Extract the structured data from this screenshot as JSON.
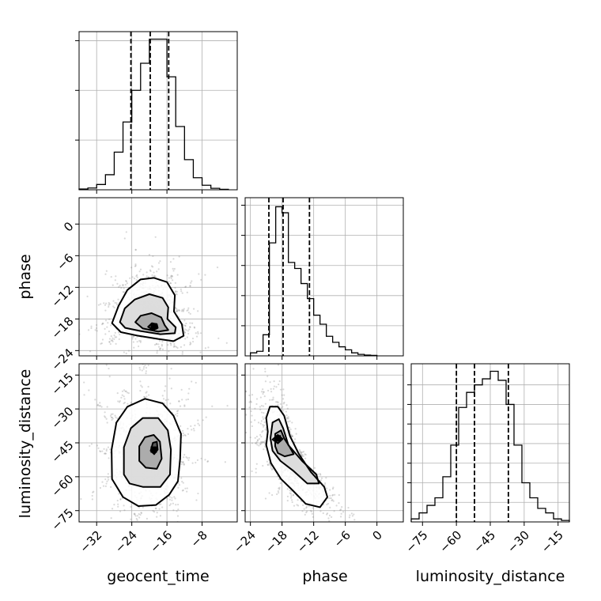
{
  "chart_data": [
    {
      "type": "histogram",
      "panel": "geocent_time-marginal",
      "parameter": "geocent_time",
      "xlim": [
        -36,
        0
      ],
      "xticks": [
        -32,
        -24,
        -16,
        -8
      ],
      "bin_edges": [
        -36,
        -34,
        -32,
        -30,
        -28,
        -26,
        -24,
        -22,
        -20,
        -18,
        -16,
        -14,
        -12,
        -10,
        -8,
        -6,
        -4,
        -2
      ],
      "counts": [
        0.5,
        1.2,
        3.5,
        10,
        25,
        45,
        66,
        84,
        100,
        100,
        75,
        42,
        20,
        8,
        3,
        1,
        0.3
      ],
      "ylim": [
        0,
        105
      ],
      "yticks": [
        33,
        66,
        99
      ],
      "quantiles": [
        -24.2,
        -19.8,
        -15.6
      ]
    },
    {
      "type": "histogram",
      "panel": "phase-marginal",
      "parameter": "phase",
      "xlim": [
        -25,
        5
      ],
      "xticks": [
        -24,
        -18,
        -12,
        -6,
        0
      ],
      "bin_edges": [
        -24,
        -22.8,
        -21.6,
        -20.4,
        -19.2,
        -18,
        -16.8,
        -15.6,
        -14.4,
        -13.2,
        -12,
        -10.8,
        -9.6,
        -8.4,
        -7.2,
        -6,
        -4.8,
        -3.6,
        -2.4,
        -1.2,
        0
      ],
      "counts": [
        2,
        3,
        14,
        75,
        99,
        95,
        62,
        58,
        48,
        38,
        27,
        21,
        13,
        9,
        6,
        4,
        2,
        1,
        0.5,
        0.3
      ],
      "ylim": [
        0,
        105
      ],
      "yticks": [
        20,
        40,
        60,
        80,
        100
      ],
      "quantiles": [
        -20.5,
        -17.8,
        -12.8
      ]
    },
    {
      "type": "histogram",
      "panel": "luminosity_distance-marginal",
      "parameter": "luminosity_distance",
      "xlim": [
        -80,
        -10
      ],
      "xticks": [
        -75,
        -60,
        -45,
        -30,
        -15
      ],
      "bin_edges": [
        -80,
        -76.5,
        -73,
        -69.5,
        -66,
        -62.5,
        -59,
        -55.5,
        -52,
        -48.5,
        -45,
        -41.5,
        -38,
        -34.5,
        -31,
        -27.5,
        -24,
        -20.5,
        -17,
        -13.5,
        -10
      ],
      "counts": [
        2,
        6,
        11,
        16,
        30,
        51,
        76,
        86,
        91,
        95,
        100,
        94,
        78,
        51,
        26,
        16,
        9,
        6,
        2,
        1
      ],
      "ylim": [
        0,
        105
      ],
      "yticks": [
        13,
        26,
        39,
        52,
        65,
        78,
        91
      ],
      "quantiles": [
        -60,
        -52,
        -37
      ]
    },
    {
      "type": "scatter",
      "panel": "phase-vs-geocent_time",
      "x_param": "geocent_time",
      "y_param": "phase",
      "xlim": [
        -36,
        0
      ],
      "ylim": [
        -25,
        5
      ],
      "xticks": [
        -32,
        -24,
        -16,
        -8
      ],
      "yticks": [
        0,
        -6,
        -12,
        -18,
        -24
      ],
      "density_peak": [
        -19,
        -19.4
      ],
      "contours": [
        [
          [
            -28.5,
            -18.8
          ],
          [
            -27,
            -15.5
          ],
          [
            -25,
            -12.5
          ],
          [
            -22,
            -10.5
          ],
          [
            -19,
            -10.2
          ],
          [
            -16,
            -11
          ],
          [
            -14.2,
            -13.5
          ],
          [
            -14.4,
            -16.6
          ],
          [
            -12.6,
            -19
          ],
          [
            -12.2,
            -21.2
          ],
          [
            -14.5,
            -22.2
          ],
          [
            -18,
            -21.8
          ],
          [
            -22.5,
            -21.2
          ],
          [
            -26.5,
            -20.5
          ]
        ],
        [
          [
            -26.7,
            -18.6
          ],
          [
            -25.6,
            -16
          ],
          [
            -23.3,
            -14.3
          ],
          [
            -20,
            -13.3
          ],
          [
            -17,
            -14
          ],
          [
            -15.7,
            -15.8
          ],
          [
            -15.9,
            -18
          ],
          [
            -14,
            -19.6
          ],
          [
            -14.2,
            -20.7
          ],
          [
            -17.5,
            -20.9
          ],
          [
            -22,
            -20.3
          ],
          [
            -25.5,
            -19.7
          ]
        ],
        [
          [
            -23.2,
            -18.6
          ],
          [
            -22,
            -17.4
          ],
          [
            -19.5,
            -16.9
          ],
          [
            -17.3,
            -17.7
          ],
          [
            -16.5,
            -19.2
          ],
          [
            -15.7,
            -20.1
          ],
          [
            -18,
            -20.4
          ],
          [
            -21.5,
            -19.8
          ]
        ],
        [
          [
            -20.3,
            -19.5
          ],
          [
            -19.4,
            -18.8
          ],
          [
            -18.3,
            -19
          ],
          [
            -18.1,
            -19.7
          ],
          [
            -19.2,
            -20.1
          ]
        ]
      ]
    },
    {
      "type": "scatter",
      "panel": "luminosity_distance-vs-geocent_time",
      "x_param": "geocent_time",
      "y_param": "luminosity_distance",
      "xlim": [
        -36,
        0
      ],
      "ylim": [
        -80,
        -10
      ],
      "xticks": [
        -32,
        -24,
        -16,
        -8
      ],
      "yticks": [
        -15,
        -30,
        -45,
        -60,
        -75
      ],
      "density_peak": [
        -19,
        -48
      ],
      "contours": [
        [
          [
            -28.5,
            -61
          ],
          [
            -28.6,
            -48
          ],
          [
            -27.5,
            -36
          ],
          [
            -25,
            -29
          ],
          [
            -21,
            -25.5
          ],
          [
            -17,
            -27.5
          ],
          [
            -14.5,
            -33
          ],
          [
            -12.8,
            -41
          ],
          [
            -13,
            -52
          ],
          [
            -13.5,
            -62
          ],
          [
            -15.5,
            -68
          ],
          [
            -18.5,
            -72.5
          ],
          [
            -22.5,
            -73
          ],
          [
            -26,
            -69
          ]
        ],
        [
          [
            -25.8,
            -59
          ],
          [
            -25.8,
            -47
          ],
          [
            -24.2,
            -38.5
          ],
          [
            -21.5,
            -34
          ],
          [
            -18,
            -34
          ],
          [
            -15.8,
            -39.5
          ],
          [
            -15.1,
            -48
          ],
          [
            -15.3,
            -59
          ],
          [
            -17.5,
            -64.5
          ],
          [
            -21.5,
            -64.5
          ],
          [
            -24.5,
            -63
          ]
        ],
        [
          [
            -22.3,
            -53
          ],
          [
            -22.3,
            -46.5
          ],
          [
            -21,
            -42.5
          ],
          [
            -19,
            -41.5
          ],
          [
            -17.6,
            -44.5
          ],
          [
            -17.2,
            -52
          ],
          [
            -18.3,
            -56.5
          ],
          [
            -20.8,
            -56
          ]
        ],
        [
          [
            -19.7,
            -48.5
          ],
          [
            -19.2,
            -45
          ],
          [
            -18.3,
            -44.5
          ],
          [
            -18.1,
            -48
          ],
          [
            -18.9,
            -50
          ]
        ]
      ]
    },
    {
      "type": "scatter",
      "panel": "luminosity_distance-vs-phase",
      "x_param": "phase",
      "y_param": "luminosity_distance",
      "xlim": [
        -25,
        5
      ],
      "ylim": [
        -80,
        -10
      ],
      "xticks": [
        -24,
        -18,
        -12,
        -6,
        0
      ],
      "yticks": [
        -15,
        -30,
        -45,
        -60,
        -75
      ],
      "density_peak": [
        -18.8,
        -43
      ],
      "contours": [
        [
          [
            -20.7,
            -40
          ],
          [
            -21,
            -34
          ],
          [
            -20.3,
            -29
          ],
          [
            -18.8,
            -29
          ],
          [
            -17.6,
            -33
          ],
          [
            -16.5,
            -42
          ],
          [
            -14.8,
            -50
          ],
          [
            -12.5,
            -58
          ],
          [
            -10,
            -64.5
          ],
          [
            -9.4,
            -69
          ],
          [
            -10.8,
            -73.5
          ],
          [
            -13.5,
            -72
          ],
          [
            -16,
            -66
          ],
          [
            -18.2,
            -61
          ],
          [
            -20.1,
            -54
          ],
          [
            -21,
            -46
          ]
        ],
        [
          [
            -20.2,
            -43
          ],
          [
            -19.8,
            -36
          ],
          [
            -18.6,
            -34.5
          ],
          [
            -17.8,
            -38.5
          ],
          [
            -16.8,
            -46
          ],
          [
            -14.2,
            -53
          ],
          [
            -11.5,
            -59
          ],
          [
            -11,
            -63
          ],
          [
            -13.2,
            -63
          ],
          [
            -15.8,
            -57.5
          ],
          [
            -18.3,
            -53
          ],
          [
            -19.8,
            -48.5
          ]
        ],
        [
          [
            -19.3,
            -46.5
          ],
          [
            -19.3,
            -41
          ],
          [
            -18.2,
            -39.5
          ],
          [
            -17.6,
            -43
          ],
          [
            -16.5,
            -47
          ],
          [
            -15.8,
            -50
          ],
          [
            -17.5,
            -51
          ],
          [
            -18.8,
            -49.5
          ]
        ],
        [
          [
            -19.8,
            -43.5
          ],
          [
            -18.8,
            -41.5
          ],
          [
            -17.9,
            -43.3
          ],
          [
            -18.8,
            -45.2
          ]
        ]
      ]
    }
  ],
  "labels": {
    "ylabel_phase": "phase",
    "ylabel_luminosity_distance": "luminosity_distance",
    "xlabel_geocent_time": "geocent_time",
    "xlabel_phase": "phase",
    "xlabel_luminosity_distance": "luminosity_distance"
  },
  "tick_labels": {
    "geocent_time": [
      "−32",
      "−24",
      "−16",
      "−8"
    ],
    "phase": [
      "−24",
      "−18",
      "−12",
      "−6",
      "0"
    ],
    "phase_y": [
      "0",
      "−6",
      "−12",
      "−18",
      "−24"
    ],
    "luminosity_distance": [
      "−75",
      "−60",
      "−45",
      "−30",
      "−15"
    ],
    "luminosity_distance_y": [
      "−15",
      "−30",
      "−45",
      "−60",
      "−75"
    ]
  },
  "style": {
    "line_color": "#000000",
    "grid_color": "#b0b0b0",
    "scatter_color": "#808080",
    "density_dark": "#3a3a3a",
    "density_light": "#e6e6e6"
  },
  "grid": true
}
